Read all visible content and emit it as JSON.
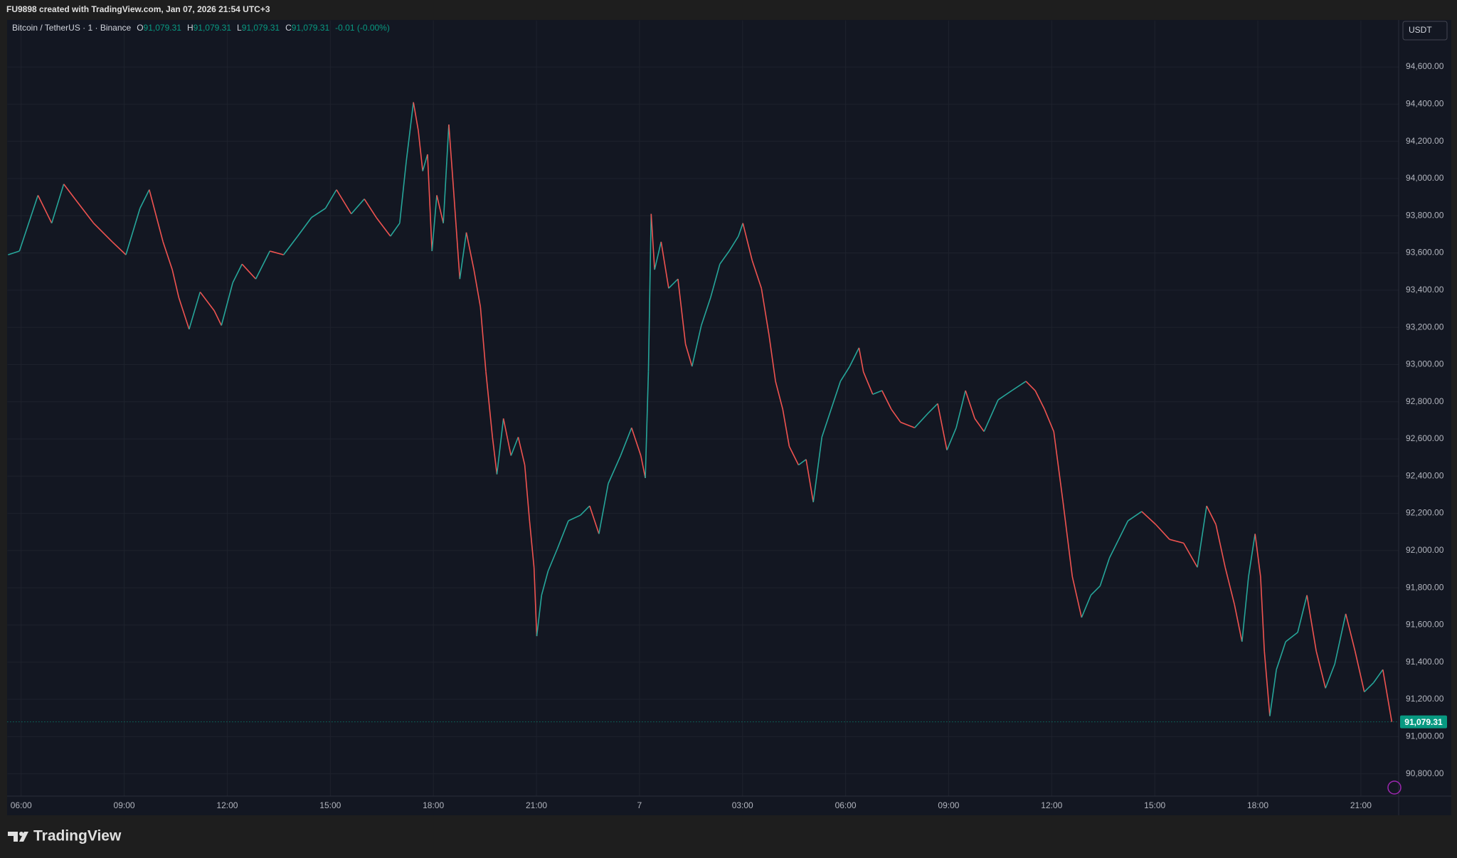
{
  "header": {
    "text": "FU9898 created with TradingView.com, Jan 07, 2026 21:54 UTC+3"
  },
  "footer": {
    "brand": "TradingView"
  },
  "legend": {
    "symbol": "Bitcoin / TetherUS · 1 · Binance",
    "ohlc": [
      {
        "key": "O",
        "text": "91,079.31"
      },
      {
        "key": "H",
        "text": "91,079.31"
      },
      {
        "key": "L",
        "text": "91,079.31"
      },
      {
        "key": "C",
        "text": "91,079.31"
      }
    ],
    "change": "-0.01 (-0.00%)"
  },
  "currency_button": "USDT",
  "chart_data": {
    "type": "line",
    "x": [
      5.62,
      5.95,
      6.49,
      6.89,
      7.24,
      7.57,
      8.11,
      8.65,
      9.05,
      9.46,
      9.73,
      10.13,
      10.4,
      10.59,
      10.89,
      11.21,
      11.62,
      11.83,
      12.16,
      12.43,
      12.83,
      13.24,
      13.64,
      14.05,
      14.45,
      14.86,
      15.18,
      15.61,
      15.99,
      16.34,
      16.75,
      17.02,
      17.21,
      17.42,
      17.56,
      17.69,
      17.83,
      17.96,
      18.1,
      18.29,
      18.45,
      18.58,
      18.77,
      18.96,
      19.18,
      19.37,
      19.53,
      19.72,
      19.85,
      20.04,
      20.26,
      20.47,
      20.66,
      20.8,
      20.93,
      21.01,
      21.15,
      21.34,
      21.61,
      21.93,
      22.28,
      22.55,
      22.82,
      23.09,
      23.45,
      23.77,
      24.04,
      24.17,
      24.26,
      24.34,
      24.44,
      24.63,
      24.85,
      25.12,
      25.34,
      25.53,
      25.8,
      26.07,
      26.34,
      26.61,
      26.88,
      27.01,
      27.28,
      27.55,
      27.77,
      27.96,
      28.17,
      28.36,
      28.63,
      28.85,
      29.06,
      29.31,
      29.58,
      29.85,
      30.12,
      30.39,
      30.52,
      30.79,
      31.06,
      31.33,
      31.6,
      32.01,
      32.41,
      32.68,
      32.95,
      33.22,
      33.49,
      33.76,
      34.03,
      34.44,
      34.84,
      35.25,
      35.52,
      35.79,
      36.06,
      36.33,
      36.6,
      36.87,
      37.14,
      37.41,
      37.68,
      37.95,
      38.22,
      38.62,
      39.03,
      39.43,
      39.84,
      40.24,
      40.51,
      40.78,
      41.05,
      41.32,
      41.54,
      41.73,
      41.92,
      42.08,
      42.19,
      42.35,
      42.54,
      42.81,
      43.16,
      43.43,
      43.7,
      43.97,
      44.24,
      44.56,
      44.83,
      45.1,
      45.37,
      45.64,
      45.9
    ],
    "series": [
      {
        "values": [
          93590,
          93610,
          93910,
          93760,
          93970,
          93890,
          93760,
          93660,
          93590,
          93840,
          93940,
          93660,
          93510,
          93360,
          93190,
          93390,
          93290,
          93210,
          93440,
          93540,
          93460,
          93610,
          93590,
          93690,
          93790,
          93840,
          93940,
          93810,
          93890,
          93790,
          93690,
          93760,
          94090,
          94410,
          94260,
          94040,
          94130,
          93610,
          93910,
          93760,
          94290,
          93960,
          93460,
          93710,
          93510,
          93310,
          92960,
          92610,
          92410,
          92710,
          92510,
          92610,
          92460,
          92160,
          91910,
          91540,
          91760,
          91890,
          92010,
          92160,
          92190,
          92240,
          92090,
          92360,
          92510,
          92660,
          92510,
          92390,
          92960,
          93810,
          93510,
          93660,
          93410,
          93460,
          93110,
          92990,
          93210,
          93360,
          93540,
          93610,
          93690,
          93760,
          93560,
          93410,
          93160,
          92910,
          92760,
          92560,
          92460,
          92490,
          92260,
          92610,
          92760,
          92910,
          92990,
          93090,
          92960,
          92840,
          92860,
          92760,
          92690,
          92660,
          92740,
          92790,
          92540,
          92660,
          92860,
          92710,
          92640,
          92810,
          92860,
          92910,
          92860,
          92760,
          92640,
          92260,
          91860,
          91640,
          91760,
          91810,
          91960,
          92060,
          92160,
          92210,
          92140,
          92060,
          92040,
          91910,
          92240,
          92140,
          91910,
          91710,
          91510,
          91860,
          92090,
          91860,
          91460,
          91110,
          91360,
          91510,
          91560,
          91760,
          91460,
          91260,
          91390,
          91660,
          91460,
          91240,
          91290,
          91360,
          91079.31
        ]
      }
    ],
    "up_color": "#26a69a",
    "down_color": "#ef5350",
    "xlim": [
      5.6,
      46.1
    ],
    "xticks": [
      {
        "value": 6,
        "label": "06:00"
      },
      {
        "value": 9,
        "label": "09:00"
      },
      {
        "value": 12,
        "label": "12:00"
      },
      {
        "value": 15,
        "label": "15:00"
      },
      {
        "value": 18,
        "label": "18:00"
      },
      {
        "value": 21,
        "label": "21:00"
      },
      {
        "value": 24,
        "label": "7"
      },
      {
        "value": 27,
        "label": "03:00"
      },
      {
        "value": 30,
        "label": "06:00"
      },
      {
        "value": 33,
        "label": "09:00"
      },
      {
        "value": 36,
        "label": "12:00"
      },
      {
        "value": 39,
        "label": "15:00"
      },
      {
        "value": 42,
        "label": "18:00"
      },
      {
        "value": 45,
        "label": "21:00"
      }
    ],
    "ylim": [
      90680,
      94850
    ],
    "yticks": [
      {
        "value": 90800,
        "label": "90,800.00"
      },
      {
        "value": 91000,
        "label": "91,000.00"
      },
      {
        "value": 91200,
        "label": "91,200.00"
      },
      {
        "value": 91400,
        "label": "91,400.00"
      },
      {
        "value": 91600,
        "label": "91,600.00"
      },
      {
        "value": 91800,
        "label": "91,800.00"
      },
      {
        "value": 92000,
        "label": "92,000.00"
      },
      {
        "value": 92200,
        "label": "92,200.00"
      },
      {
        "value": 92400,
        "label": "92,400.00"
      },
      {
        "value": 92600,
        "label": "92,600.00"
      },
      {
        "value": 92800,
        "label": "92,800.00"
      },
      {
        "value": 93000,
        "label": "93,000.00"
      },
      {
        "value": 93200,
        "label": "93,200.00"
      },
      {
        "value": 93400,
        "label": "93,400.00"
      },
      {
        "value": 93600,
        "label": "93,600.00"
      },
      {
        "value": 93800,
        "label": "93,800.00"
      },
      {
        "value": 94000,
        "label": "94,000.00"
      },
      {
        "value": 94200,
        "label": "94,200.00"
      },
      {
        "value": 94400,
        "label": "94,400.00"
      },
      {
        "value": 94600,
        "label": "94,600.00"
      }
    ],
    "last_price": {
      "value": 91079.31,
      "label": "91,079.31"
    },
    "last_price_color": "#089981",
    "grid": true
  }
}
